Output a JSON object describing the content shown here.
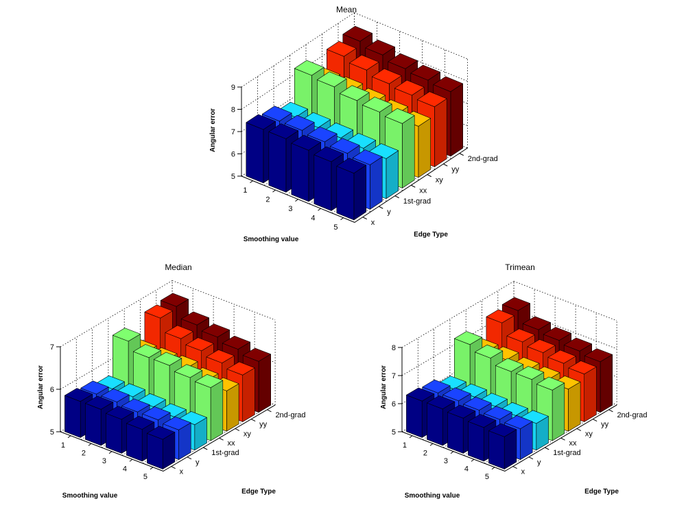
{
  "chart_data": [
    {
      "type": "bar3d",
      "title": "Mean",
      "xlabel": "Smoothing value",
      "ylabel": "Edge Type",
      "zlabel": "Angular error",
      "x_categories": [
        "1",
        "2",
        "3",
        "4",
        "5"
      ],
      "y_categories": [
        "x",
        "y",
        "1st-grad",
        "xx",
        "xy",
        "yy",
        "2nd-grad"
      ],
      "zlim": [
        5,
        9
      ],
      "z_ticks": [
        "5",
        "6",
        "7",
        "8",
        "9"
      ],
      "grid": true,
      "colors": [
        "#00008b",
        "#1a44ff",
        "#19dfff",
        "#7fff6f",
        "#ffc200",
        "#ff2a00",
        "#800000"
      ],
      "series": [
        {
          "values": [
            7.4,
            7.4,
            7.3,
            7.2,
            7.1
          ]
        },
        {
          "values": [
            7.3,
            7.3,
            7.2,
            7.1,
            7.0
          ]
        },
        {
          "values": [
            7.0,
            6.95,
            6.9,
            6.85,
            6.8
          ]
        },
        {
          "values": [
            8.4,
            8.3,
            8.1,
            8.0,
            7.9
          ]
        },
        {
          "values": [
            7.6,
            7.6,
            7.5,
            7.4,
            7.3
          ]
        },
        {
          "values": [
            8.3,
            8.1,
            7.9,
            7.8,
            7.7
          ]
        },
        {
          "values": [
            8.5,
            8.3,
            8.1,
            8.0,
            7.9
          ]
        }
      ]
    },
    {
      "type": "bar3d",
      "title": "Median",
      "xlabel": "Smoothing value",
      "ylabel": "Edge Type",
      "zlabel": "Angular error",
      "x_categories": [
        "1",
        "2",
        "3",
        "4",
        "5"
      ],
      "y_categories": [
        "x",
        "y",
        "1st-grad",
        "xx",
        "xy",
        "yy",
        "2nd-grad"
      ],
      "zlim": [
        5,
        7
      ],
      "z_ticks": [
        "5",
        "6",
        "7"
      ],
      "grid": true,
      "colors": [
        "#00008b",
        "#1a44ff",
        "#19dfff",
        "#7fff6f",
        "#ffc200",
        "#ff2a00",
        "#800000"
      ],
      "series": [
        {
          "values": [
            5.85,
            5.85,
            5.8,
            5.75,
            5.7
          ]
        },
        {
          "values": [
            5.8,
            5.8,
            5.75,
            5.75,
            5.7
          ]
        },
        {
          "values": [
            5.7,
            5.7,
            5.65,
            5.6,
            5.6
          ]
        },
        {
          "values": [
            6.6,
            6.4,
            6.4,
            6.3,
            6.25
          ]
        },
        {
          "values": [
            6.1,
            6.1,
            6.1,
            6.0,
            5.95
          ]
        },
        {
          "values": [
            6.7,
            6.4,
            6.3,
            6.2,
            6.1
          ]
        },
        {
          "values": [
            6.75,
            6.5,
            6.4,
            6.3,
            6.2
          ]
        }
      ]
    },
    {
      "type": "bar3d",
      "title": "Trimean",
      "xlabel": "Smoothing value",
      "ylabel": "Edge Type",
      "zlabel": "Angular error",
      "x_categories": [
        "1",
        "2",
        "3",
        "4",
        "5"
      ],
      "y_categories": [
        "x",
        "y",
        "1st-grad",
        "xx",
        "xy",
        "yy",
        "2nd-grad"
      ],
      "zlim": [
        5,
        8
      ],
      "z_ticks": [
        "5",
        "6",
        "7",
        "8"
      ],
      "grid": true,
      "colors": [
        "#00008b",
        "#1a44ff",
        "#19dfff",
        "#7fff6f",
        "#ffc200",
        "#ff2a00",
        "#800000"
      ],
      "series": [
        {
          "values": [
            6.3,
            6.3,
            6.25,
            6.2,
            6.15
          ]
        },
        {
          "values": [
            6.25,
            6.25,
            6.2,
            6.15,
            6.1
          ]
        },
        {
          "values": [
            6.05,
            6.05,
            6.0,
            5.95,
            5.95
          ]
        },
        {
          "values": [
            7.3,
            7.1,
            6.9,
            6.9,
            6.8
          ]
        },
        {
          "values": [
            6.7,
            6.7,
            6.6,
            6.55,
            6.5
          ]
        },
        {
          "values": [
            7.4,
            7.0,
            6.9,
            6.8,
            6.7
          ]
        },
        {
          "values": [
            7.5,
            7.1,
            7.0,
            6.9,
            6.8
          ]
        }
      ]
    }
  ]
}
